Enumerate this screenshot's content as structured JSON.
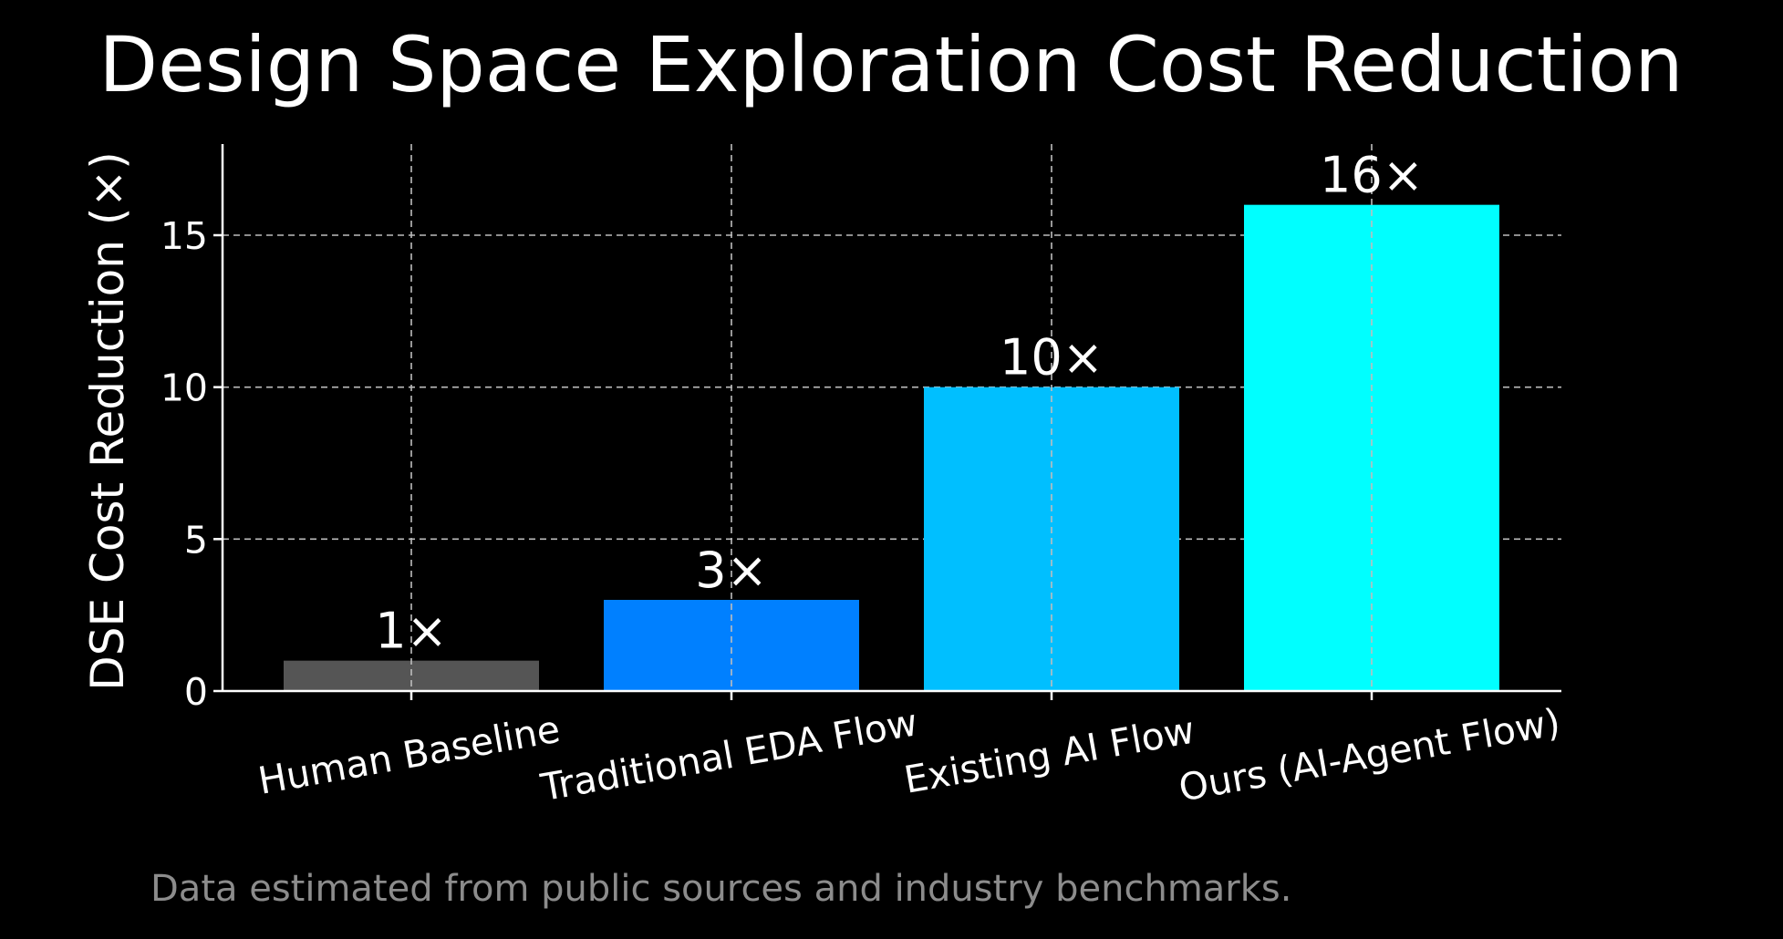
{
  "chart_data": {
    "type": "bar",
    "title": "Design Space Exploration Cost Reduction",
    "xlabel": "",
    "ylabel": "DSE Cost Reduction (×)",
    "categories": [
      "Human Baseline",
      "Traditional EDA Flow",
      "Existing AI Flow",
      "Ours (AI-Agent Flow)"
    ],
    "values": [
      1,
      3,
      10,
      16
    ],
    "data_labels": [
      "1×",
      "3×",
      "10×",
      "16×"
    ],
    "colors": [
      "#555555",
      "#0080ff",
      "#00bfff",
      "#00ffff"
    ],
    "yticks": [
      0,
      5,
      10,
      15
    ],
    "ytick_labels": [
      "0",
      "5",
      "10",
      "15"
    ],
    "ylim": [
      0,
      18
    ],
    "grid": true,
    "footnote": "Data estimated from public sources and industry benchmarks."
  }
}
